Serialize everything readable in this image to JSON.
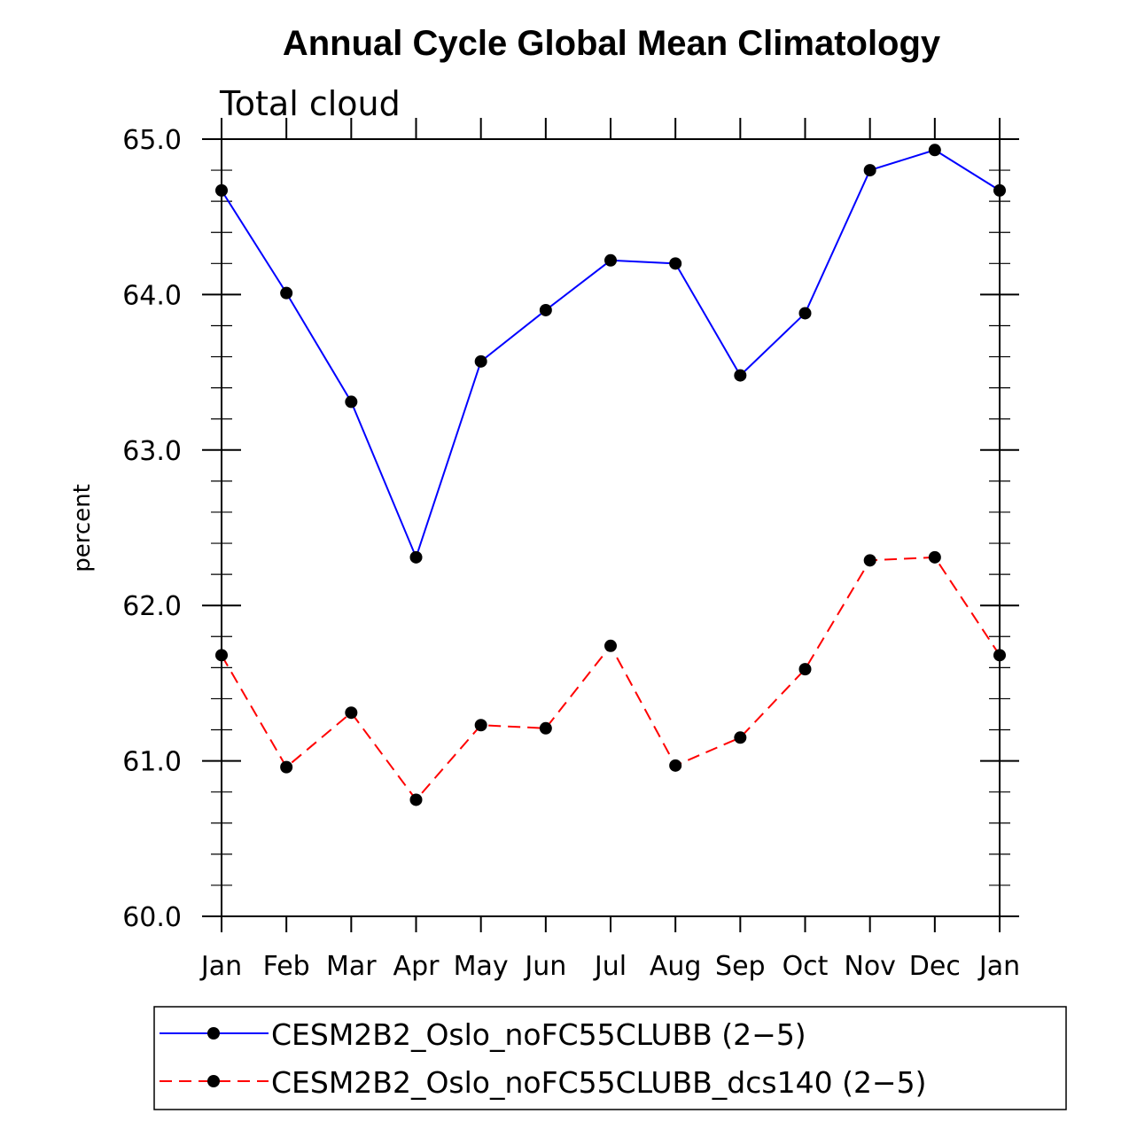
{
  "chart_data": {
    "type": "line",
    "title": "Annual Cycle Global Mean Climatology",
    "subtitle": "Total cloud",
    "xlabel": "",
    "ylabel": "percent",
    "categories": [
      "Jan",
      "Feb",
      "Mar",
      "Apr",
      "May",
      "Jun",
      "Jul",
      "Aug",
      "Sep",
      "Oct",
      "Nov",
      "Dec",
      "Jan"
    ],
    "ylim": [
      60.0,
      65.0
    ],
    "yticks": [
      "60.0",
      "61.0",
      "62.0",
      "63.0",
      "64.0",
      "65.0"
    ],
    "grid": false,
    "legend_position": "bottom",
    "series": [
      {
        "name": "CESM2B2_Oslo_noFC55CLUBB (2−5)",
        "color": "#0000ff",
        "line_style": "solid",
        "marker": "filled-circle",
        "values": [
          64.67,
          64.01,
          63.31,
          62.31,
          63.57,
          63.9,
          64.22,
          64.2,
          63.48,
          63.88,
          64.8,
          64.93,
          64.67
        ]
      },
      {
        "name": "CESM2B2_Oslo_noFC55CLUBB_dcs140 (2−5)",
        "color": "#ff0000",
        "line_style": "dashed",
        "marker": "filled-circle",
        "values": [
          61.68,
          60.96,
          61.31,
          60.75,
          61.23,
          61.21,
          61.74,
          60.97,
          61.15,
          61.59,
          62.29,
          62.31,
          61.68
        ]
      }
    ]
  }
}
